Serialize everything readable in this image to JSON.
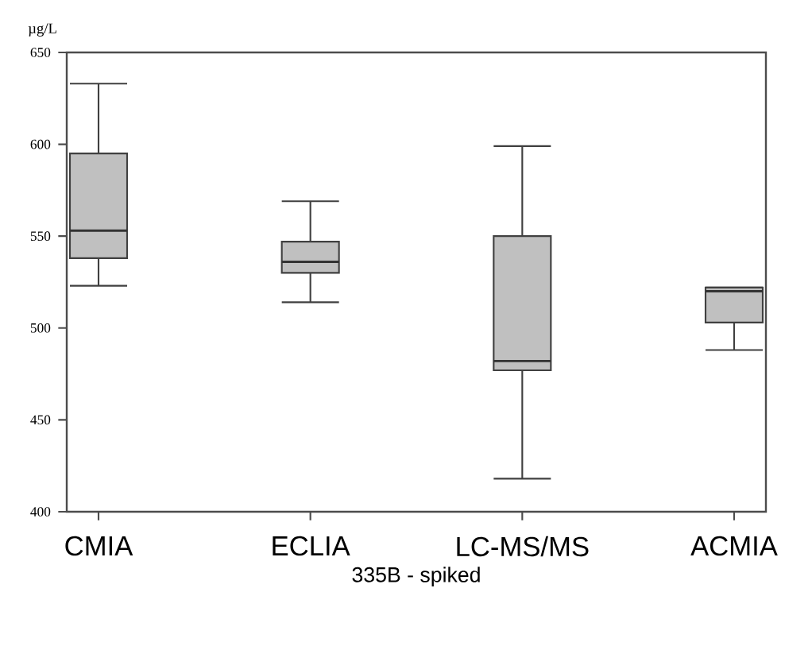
{
  "chart_data": {
    "type": "box",
    "xlabel": "335B - spiked",
    "ylabel": "µg/L",
    "categories": [
      "CMIA",
      "ECLIA",
      "LC-MS/MS",
      "ACMIA"
    ],
    "color": "#c0c0c0",
    "boxes": [
      {
        "low": 523,
        "q1": 538,
        "median": 553,
        "q3": 595,
        "high": 633
      },
      {
        "low": 514,
        "q1": 530,
        "median": 536,
        "q3": 547,
        "high": 569
      },
      {
        "low": 418,
        "q1": 477,
        "median": 482,
        "q3": 550,
        "high": 599
      },
      {
        "low": 488,
        "q1": 503,
        "median": 520,
        "q3": 522,
        "high": 522
      }
    ],
    "ylim": [
      400,
      650
    ],
    "yticks": [
      400,
      450,
      500,
      550,
      600,
      650
    ]
  }
}
